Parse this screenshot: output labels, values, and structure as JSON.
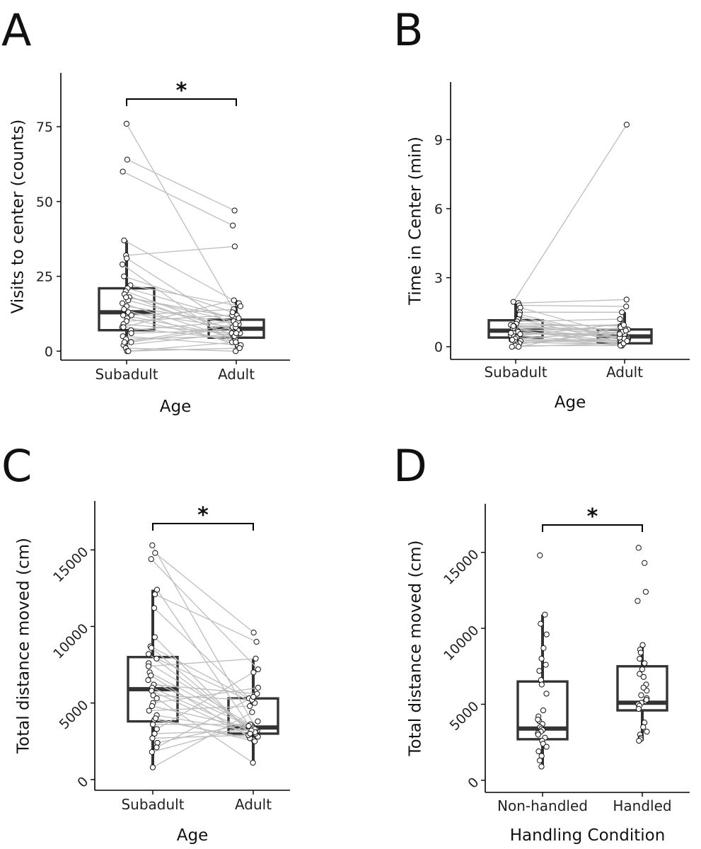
{
  "figure_title": "",
  "chart_data": [
    {
      "panel": "A",
      "type": "box",
      "xlabel": "Age",
      "ylabel": "Visits to center (counts)",
      "categories": [
        "Subadult",
        "Adult"
      ],
      "ylim": [
        -3,
        93
      ],
      "yticks": [
        "0",
        "25",
        "50",
        "75"
      ],
      "ytick_values": [
        0,
        25,
        50,
        75
      ],
      "paired": true,
      "boxes": [
        {
          "min": 0,
          "q1": 7,
          "median": 13,
          "q3": 21,
          "max": 37
        },
        {
          "min": 0,
          "q1": 4.5,
          "median": 7.5,
          "q3": 10.5,
          "max": 17
        }
      ],
      "points": [
        [
          76,
          64,
          60,
          37,
          32,
          31,
          29,
          22,
          21,
          20,
          19,
          18,
          17,
          16,
          15,
          14,
          13,
          12,
          11,
          10,
          9,
          8,
          7,
          6,
          5,
          4,
          3,
          2,
          1,
          0,
          0,
          3,
          8,
          12,
          18,
          25
        ],
        [
          12,
          47,
          42,
          16,
          35,
          8,
          3,
          15,
          11,
          6,
          5,
          10,
          7,
          4,
          9,
          2,
          8,
          5,
          3,
          12,
          6,
          4,
          10,
          7,
          2,
          5,
          8,
          6,
          0,
          1,
          3,
          9,
          17,
          14,
          11,
          13
        ]
      ],
      "significance": {
        "label": "*",
        "between": [
          "Subadult",
          "Adult"
        ]
      }
    },
    {
      "panel": "B",
      "type": "box",
      "xlabel": "Age",
      "ylabel": "Time in Center (min)",
      "categories": [
        "Subadult",
        "Adult"
      ],
      "ylim": [
        -0.55,
        11.5
      ],
      "yticks": [
        "0",
        "3",
        "6",
        "9"
      ],
      "ytick_values": [
        0,
        3,
        6,
        9
      ],
      "paired": true,
      "boxes": [
        {
          "min": 0,
          "q1": 0.4,
          "median": 0.7,
          "q3": 1.15,
          "max": 1.95
        },
        {
          "min": 0.05,
          "q1": 0.15,
          "median": 0.45,
          "q3": 0.75,
          "max": 1.5
        }
      ],
      "points": [
        [
          1.95,
          1.9,
          1.8,
          1.7,
          1.5,
          1.3,
          1.2,
          1.1,
          1.0,
          0.95,
          0.9,
          0.85,
          0.8,
          0.75,
          0.7,
          0.65,
          0.6,
          0.55,
          0.5,
          0.45,
          0.4,
          0.35,
          0.3,
          0.25,
          0.2,
          0.15,
          0.1,
          0.05,
          0.0,
          0.0,
          1.4,
          0.9,
          0.6,
          0.3
        ],
        [
          9.65,
          2.05,
          1.75,
          0.4,
          1.5,
          0.3,
          0.2,
          1.2,
          0.9,
          0.6,
          0.5,
          0.75,
          0.35,
          0.1,
          0.8,
          0.25,
          0.45,
          0.55,
          0.15,
          1.0,
          0.05,
          0.65,
          0.3,
          0.2,
          0.1,
          0.4,
          0.7,
          0.05,
          0.15,
          0.85,
          0.35,
          0.95,
          0.55,
          0.25
        ]
      ],
      "significance": null
    },
    {
      "panel": "C",
      "type": "box",
      "xlabel": "Age",
      "ylabel": "Total distance moved (cm)",
      "categories": [
        "Subadult",
        "Adult"
      ],
      "ylim": [
        -700,
        18200
      ],
      "yticks": [
        "0",
        "5000",
        "10000",
        "15000"
      ],
      "ytick_values": [
        0,
        5000,
        10000,
        15000
      ],
      "paired": true,
      "boxes": [
        {
          "min": 800,
          "q1": 3800,
          "median": 5900,
          "q3": 8000,
          "max": 12400
        },
        {
          "min": 1100,
          "q1": 3000,
          "median": 3400,
          "q3": 5300,
          "max": 7900
        }
      ],
      "points": [
        [
          15300,
          14800,
          14400,
          12400,
          12100,
          11200,
          8700,
          8600,
          8200,
          7900,
          7600,
          7400,
          7000,
          6800,
          6500,
          6200,
          6000,
          5800,
          5500,
          5300,
          5000,
          4800,
          4500,
          4200,
          3900,
          3600,
          3300,
          3000,
          2700,
          2400,
          2100,
          1800,
          800,
          9300,
          4000
        ],
        [
          3200,
          9600,
          7200,
          3000,
          9000,
          5100,
          5300,
          2800,
          3100,
          5000,
          3500,
          7900,
          3300,
          2600,
          3400,
          5600,
          3000,
          2900,
          5200,
          1100,
          6000,
          3300,
          4800,
          3100,
          2700,
          3600,
          7000,
          3200,
          2900,
          3800,
          5400,
          3500,
          4400,
          3000,
          2500
        ]
      ],
      "significance": {
        "label": "*",
        "between": [
          "Subadult",
          "Adult"
        ]
      }
    },
    {
      "panel": "D",
      "type": "box",
      "xlabel": "Handling Condition",
      "ylabel": "Total distance moved (cm)",
      "categories": [
        "Non-handled",
        "Handled"
      ],
      "ylim": [
        -800,
        18200
      ],
      "yticks": [
        "0",
        "5000",
        "10000",
        "15000"
      ],
      "ytick_values": [
        0,
        5000,
        10000,
        15000
      ],
      "paired": false,
      "boxes": [
        {
          "min": 900,
          "q1": 2700,
          "median": 3400,
          "q3": 6500,
          "max": 10900
        },
        {
          "min": 2600,
          "q1": 4600,
          "median": 5100,
          "q3": 7500,
          "max": 8900
        }
      ],
      "points": [
        [
          14800,
          10900,
          10300,
          9600,
          8700,
          8000,
          7600,
          7200,
          6600,
          6300,
          5700,
          4600,
          4200,
          3900,
          3700,
          3500,
          3400,
          3300,
          3200,
          3100,
          3000,
          2800,
          2600,
          2400,
          2200,
          1900,
          1600,
          1300,
          900,
          4000
        ],
        [
          15300,
          14300,
          12400,
          11800,
          8900,
          8600,
          8400,
          8000,
          7700,
          7300,
          7000,
          6800,
          6300,
          5900,
          5600,
          5400,
          5200,
          5100,
          5000,
          4900,
          4700,
          3800,
          3500,
          3200,
          3000,
          2800,
          2700,
          2600,
          5300,
          6100
        ]
      ],
      "significance": {
        "label": "*",
        "between": [
          "Non-handled",
          "Handled"
        ]
      }
    }
  ]
}
